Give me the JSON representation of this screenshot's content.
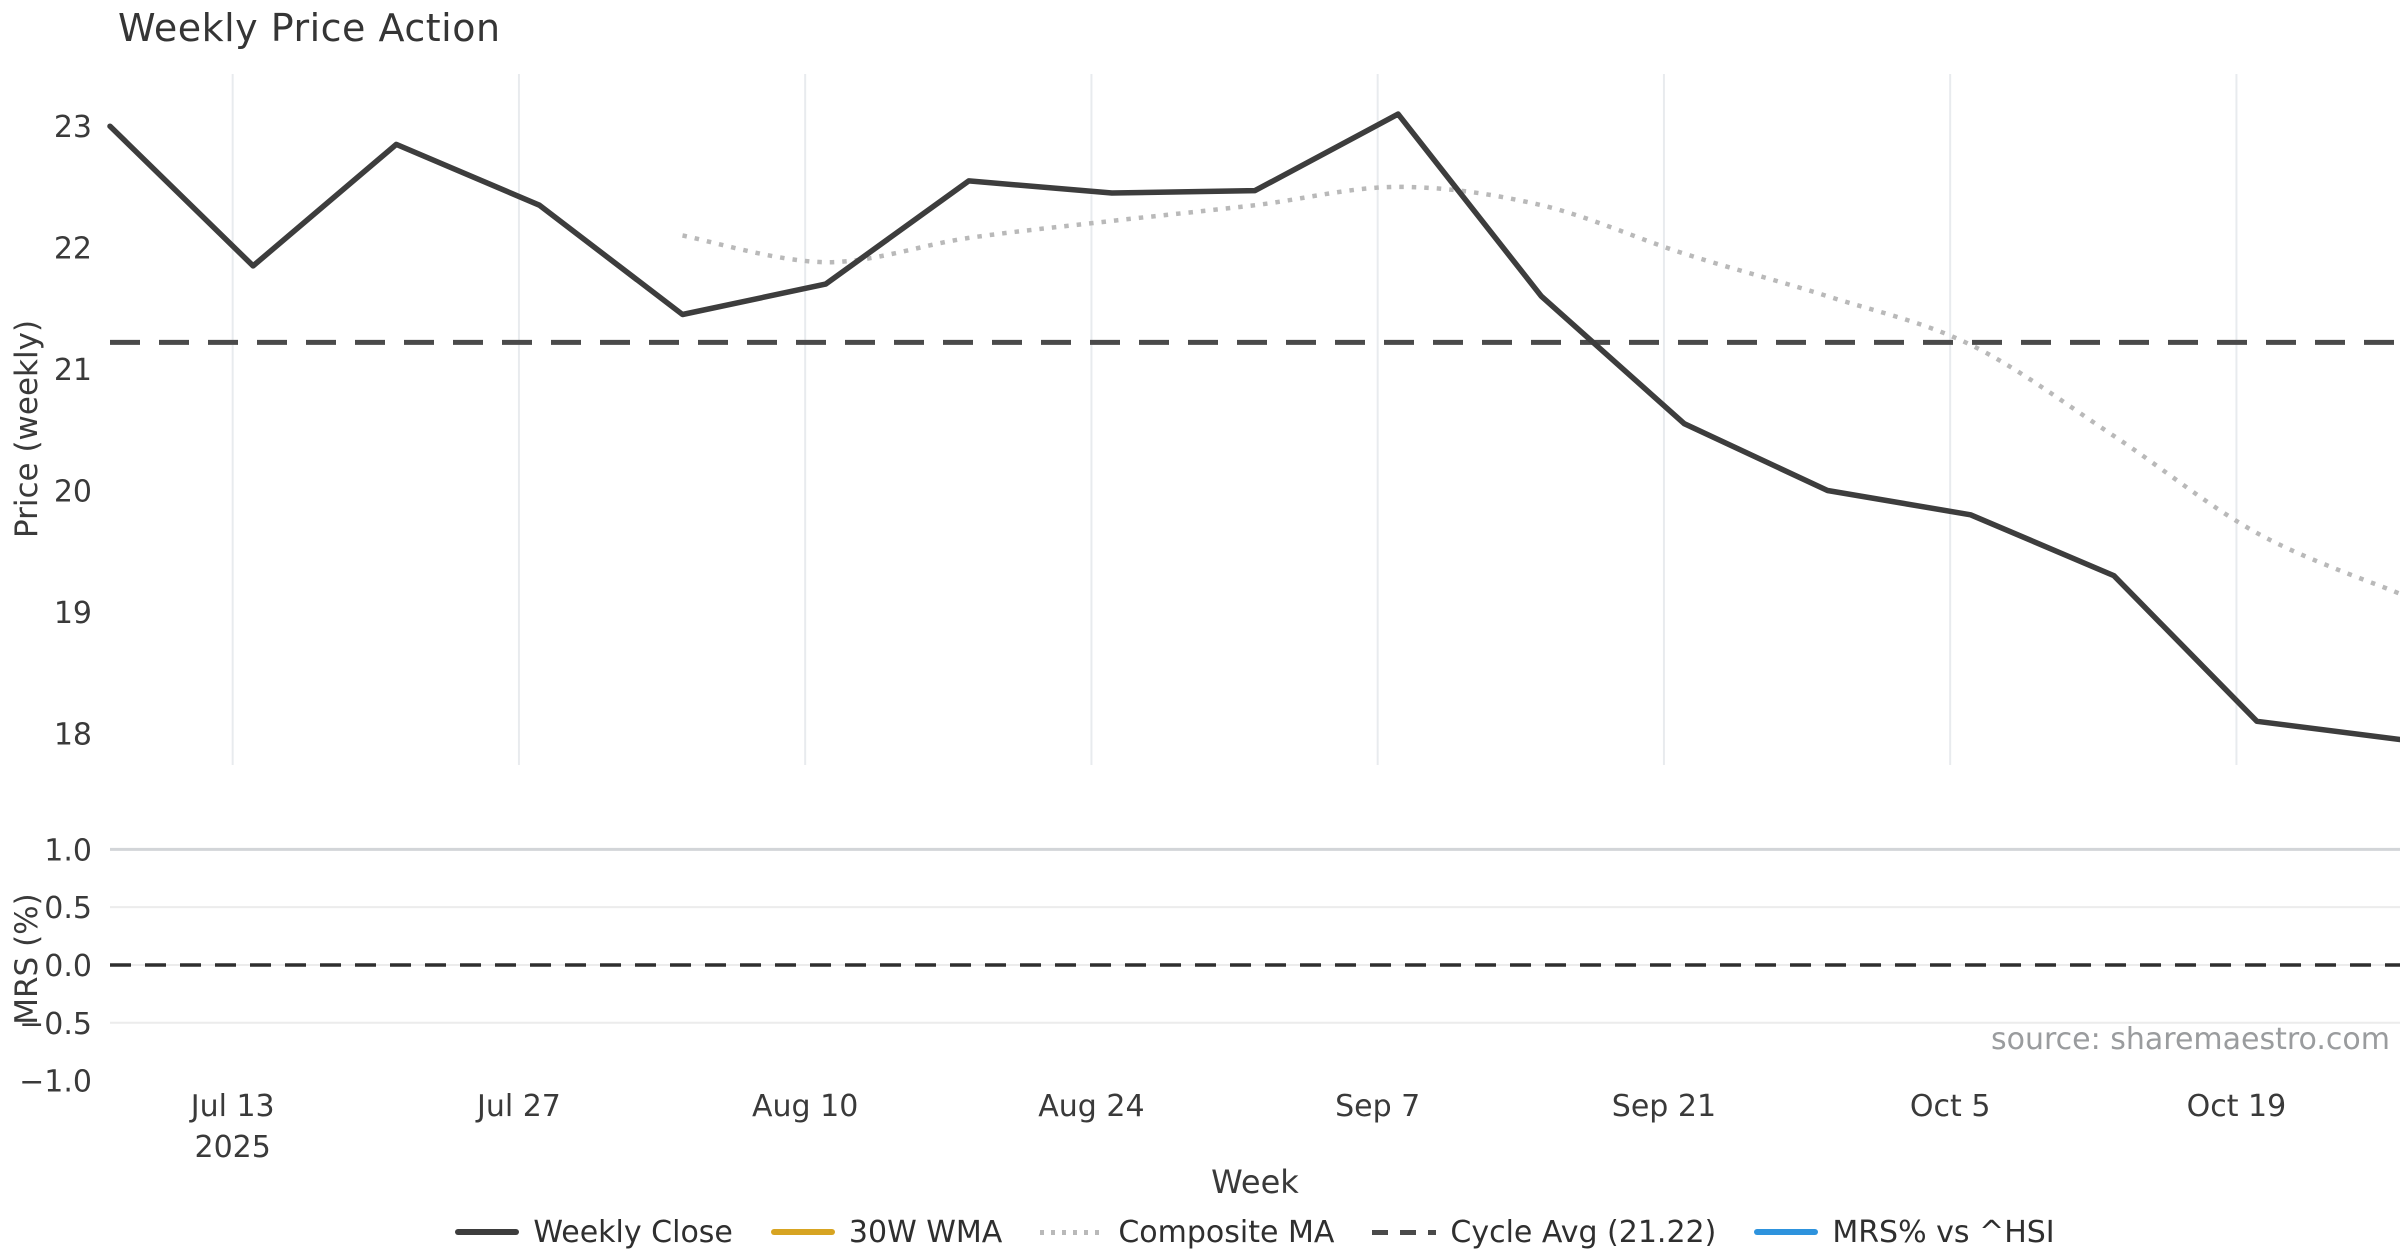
{
  "title": "Weekly Price Action",
  "source_note": "source: sharemaestro.com",
  "colors": {
    "close_line": "#3d3d3d",
    "wma_line": "#d7a422",
    "composite_line": "#b9b9b9",
    "cycle_avg_line": "#4a4a4a",
    "mrs_line": "#2e93dd",
    "grid_vertical": "#e8ebee",
    "grid_horizontal": "#ececec",
    "grid_horizontal_top": "#d2d5d8",
    "tick_text": "#3a3a3a",
    "source_text": "#9a9c9e"
  },
  "legend": {
    "items": [
      {
        "label": "Weekly Close",
        "style": "solid",
        "color": "#3d3d3d"
      },
      {
        "label": "30W WMA",
        "style": "solid",
        "color": "#d7a422"
      },
      {
        "label": "Composite MA",
        "style": "dotted",
        "color": "#b9b9b9"
      },
      {
        "label": "Cycle Avg (21.22)",
        "style": "dashed",
        "color": "#4a4a4a"
      },
      {
        "label": "MRS% vs ^HSI",
        "style": "solid",
        "color": "#2e93dd"
      }
    ]
  },
  "chart_data": [
    {
      "type": "line",
      "panel": "price",
      "title": "Weekly Price Action",
      "ylabel": "Price (weekly)",
      "xlabel": "Week",
      "x": [
        "Jul 7",
        "Jul 14",
        "Jul 21",
        "Jul 28",
        "Aug 4",
        "Aug 11",
        "Aug 18",
        "Aug 25",
        "Sep 1",
        "Sep 8",
        "Sep 15",
        "Sep 22",
        "Sep 29",
        "Oct 6",
        "Oct 13",
        "Oct 20",
        "Oct 27"
      ],
      "x_days": [
        0,
        7,
        14,
        21,
        28,
        35,
        42,
        49,
        56,
        63,
        70,
        77,
        84,
        91,
        98,
        105,
        112
      ],
      "xlim_days": [
        0,
        112
      ],
      "xtick_days": [
        6,
        20,
        34,
        48,
        62,
        76,
        90,
        104
      ],
      "xtick_labels": [
        "Jul 13",
        "Jul 27",
        "Aug 10",
        "Aug 24",
        "Sep 7",
        "Sep 21",
        "Oct 5",
        "Oct 19"
      ],
      "xtick_year_label": "2025",
      "ytick_values": [
        23,
        22,
        21,
        20,
        19,
        18
      ],
      "ytick_labels": [
        "23",
        "22",
        "21",
        "20",
        "19",
        "18"
      ],
      "ylim": [
        17.74,
        23.43
      ],
      "grid": "vertical-only",
      "series": [
        {
          "name": "Weekly Close",
          "style": "solid",
          "smooth": false,
          "values": [
            23.0,
            21.85,
            22.85,
            22.35,
            21.45,
            21.7,
            22.55,
            22.45,
            22.47,
            23.1,
            21.6,
            20.55,
            20.0,
            19.8,
            19.3,
            18.1,
            17.95
          ]
        },
        {
          "name": "30W WMA",
          "style": "solid",
          "smooth": false,
          "values": [
            null,
            null,
            null,
            null,
            null,
            null,
            null,
            null,
            null,
            null,
            null,
            null,
            null,
            null,
            null,
            null,
            null
          ]
        },
        {
          "name": "Composite MA",
          "style": "dotted",
          "smooth": true,
          "values": [
            null,
            null,
            null,
            null,
            22.1,
            21.88,
            22.08,
            22.22,
            22.35,
            22.5,
            22.35,
            21.95,
            21.6,
            21.2,
            20.45,
            19.65,
            19.15
          ]
        }
      ],
      "ref_lines": [
        {
          "name": "Cycle Avg (21.22)",
          "value": 21.22,
          "style": "dashed"
        }
      ],
      "legend_position": "below-figure-center"
    },
    {
      "type": "line",
      "panel": "mrs",
      "ylabel": "MRS (%)",
      "ytick_values": [
        1.0,
        0.5,
        0.0,
        -0.5,
        -1.0
      ],
      "ytick_labels": [
        "1.0",
        "0.5",
        "0.0",
        "−0.5",
        "−1.0"
      ],
      "ylim": [
        -1.055,
        1.193
      ],
      "grid": "horizontal-only",
      "series": [
        {
          "name": "MRS% vs ^HSI",
          "style": "solid",
          "values": [
            null,
            null,
            null,
            null,
            null,
            null,
            null,
            null,
            null,
            null,
            null,
            null,
            null,
            null,
            null,
            null,
            null
          ]
        }
      ],
      "ref_lines": [
        {
          "name": "zero",
          "value": 0.0,
          "style": "dashed"
        }
      ]
    }
  ]
}
